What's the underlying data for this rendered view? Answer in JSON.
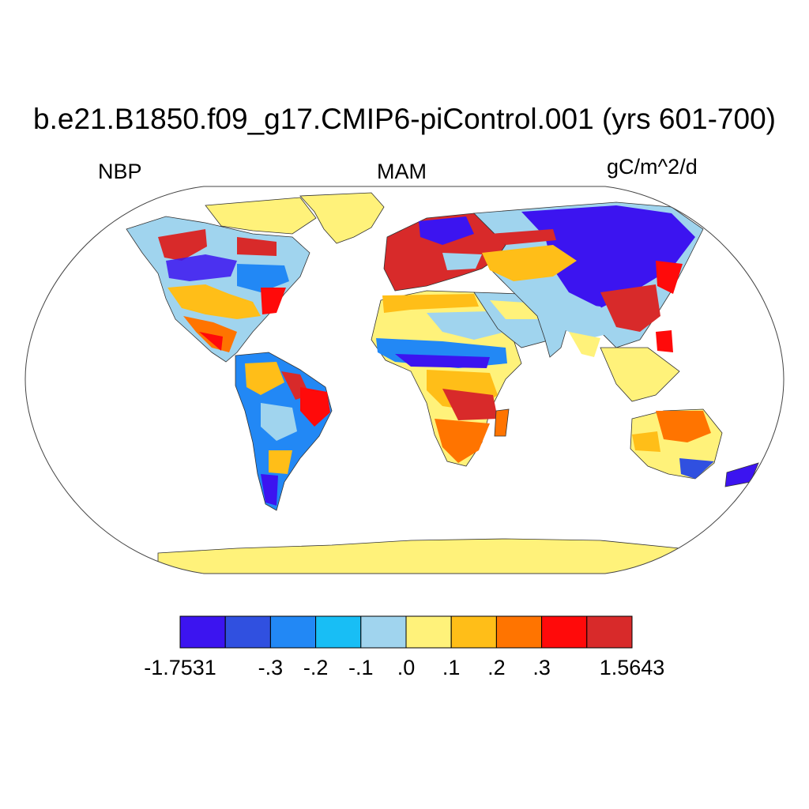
{
  "title": "b.e21.B1850.f09_g17.CMIP6-piControl.001 (yrs 601-700)",
  "left_label": "NBP",
  "center_label": "MAM",
  "right_label": "gC/m^2/d",
  "colorbar": {
    "colors": [
      "#3c14f0",
      "#3050e0",
      "#2288f5",
      "#18bef5",
      "#a0d4ee",
      "#fff27a",
      "#ffbe18",
      "#ff7400",
      "#ff0a0a",
      "#d82a2a"
    ],
    "labels": [
      "-1.7531",
      "-.3",
      "-.2",
      "-.1",
      ".0",
      ".1",
      ".2",
      ".3",
      "1.5643"
    ]
  }
}
